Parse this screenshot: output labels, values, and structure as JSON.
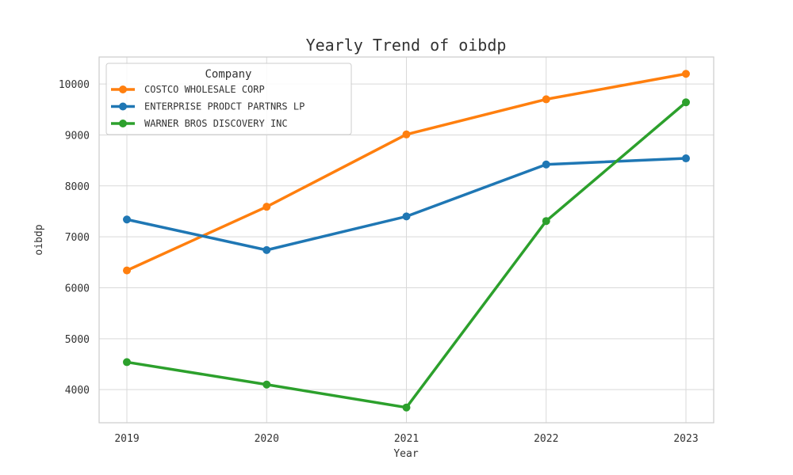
{
  "chart_data": {
    "type": "line",
    "title": "Yearly Trend of oibdp",
    "xlabel": "Year",
    "ylabel": "oibdp",
    "x": [
      "2019",
      "2020",
      "2021",
      "2022",
      "2023"
    ],
    "y_ticks": [
      "4000",
      "5000",
      "6000",
      "7000",
      "8000",
      "9000",
      "10000"
    ],
    "ylim": [
      3350,
      10530
    ],
    "grid": true,
    "legend": {
      "title": "Company",
      "position": "top-left"
    },
    "series": [
      {
        "name": "COSTCO WHOLESALE CORP",
        "color": "#ff7f0e",
        "values": [
          6340,
          7590,
          9010,
          9700,
          10200
        ]
      },
      {
        "name": "ENTERPRISE PRODCT PARTNRS LP",
        "color": "#1f77b4",
        "values": [
          7340,
          6740,
          7400,
          8420,
          8540
        ]
      },
      {
        "name": "WARNER BROS DISCOVERY INC",
        "color": "#2ca02c",
        "values": [
          4540,
          4100,
          3650,
          7310,
          9640
        ]
      }
    ]
  }
}
